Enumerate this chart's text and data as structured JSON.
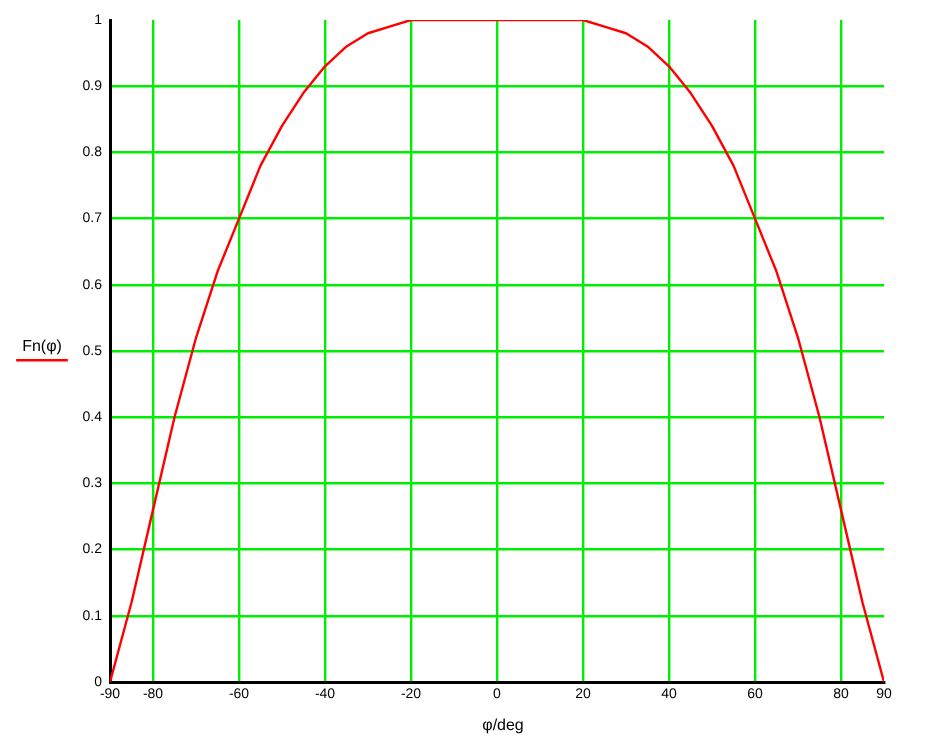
{
  "chart_data": {
    "type": "line",
    "xlabel": "φ/deg",
    "ylabel": "Fn(φ)",
    "x": [
      -90,
      -85,
      -80,
      -75,
      -70,
      -65,
      -60,
      -55,
      -50,
      -45,
      -40,
      -35,
      -30,
      -25,
      -20,
      -15,
      -10,
      0,
      10,
      15,
      20,
      25,
      30,
      35,
      40,
      45,
      50,
      55,
      60,
      65,
      70,
      75,
      80,
      85,
      90
    ],
    "series": [
      {
        "color": "#ff0000",
        "values": [
          0,
          0.12,
          0.26,
          0.4,
          0.52,
          0.62,
          0.7,
          0.78,
          0.84,
          0.89,
          0.93,
          0.96,
          0.98,
          0.99,
          1,
          1,
          1,
          1,
          1,
          1,
          1,
          0.99,
          0.98,
          0.96,
          0.93,
          0.89,
          0.84,
          0.78,
          0.7,
          0.62,
          0.52,
          0.4,
          0.26,
          0.12,
          0
        ]
      }
    ],
    "xlim": [
      -90,
      90
    ],
    "xticks": [
      -90,
      -80,
      -60,
      -40,
      -20,
      0,
      20,
      40,
      60,
      80,
      90
    ],
    "ylim": [
      0,
      1
    ],
    "yticks": [
      0,
      0.1,
      0.2,
      0.3,
      0.4,
      0.5,
      0.6,
      0.7,
      0.8,
      0.9,
      1
    ],
    "grid": true,
    "legend": false,
    "marker": "none",
    "line_style": "solid"
  }
}
